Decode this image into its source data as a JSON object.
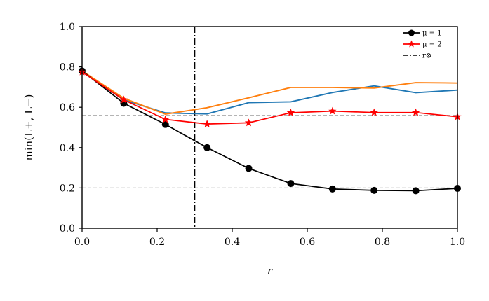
{
  "chart_data": {
    "type": "line",
    "xlabel": "r",
    "ylabel": "min(L+, L−)",
    "xlim": [
      0.0,
      1.0
    ],
    "ylim": [
      0.0,
      1.0
    ],
    "xticks": [
      "0.0",
      "0.2",
      "0.4",
      "0.6",
      "0.8",
      "1.0"
    ],
    "yticks": [
      "0.0",
      "0.2",
      "0.4",
      "0.6",
      "0.8",
      "1.0"
    ],
    "grid": false,
    "legend_position": "top-right",
    "series": [
      {
        "name": "μ = 1",
        "color": "#000000",
        "marker": "circle",
        "x": [
          0.0,
          0.111,
          0.222,
          0.333,
          0.444,
          0.556,
          0.667,
          0.778,
          0.889,
          1.0
        ],
        "y": [
          0.78,
          0.62,
          0.515,
          0.4,
          0.297,
          0.222,
          0.195,
          0.188,
          0.186,
          0.198
        ]
      },
      {
        "name": "μ = 2",
        "color": "#ff0000",
        "marker": "star",
        "x": [
          0.0,
          0.111,
          0.222,
          0.333,
          0.444,
          0.556,
          0.667,
          0.778,
          0.889,
          1.0
        ],
        "y": [
          0.775,
          0.637,
          0.54,
          0.517,
          0.523,
          0.573,
          0.581,
          0.574,
          0.574,
          0.553
        ]
      },
      {
        "color": "#1f77b4",
        "marker": "none",
        "x": [
          0.0,
          0.111,
          0.222,
          0.333,
          0.444,
          0.556,
          0.667,
          0.778,
          0.889,
          1.0
        ],
        "y": [
          0.775,
          0.637,
          0.572,
          0.567,
          0.623,
          0.627,
          0.673,
          0.706,
          0.672,
          0.685
        ]
      },
      {
        "color": "#ff7f0e",
        "marker": "none",
        "x": [
          0.0,
          0.111,
          0.222,
          0.333,
          0.444,
          0.556,
          0.667,
          0.778,
          0.889,
          1.0
        ],
        "y": [
          0.78,
          0.645,
          0.566,
          0.598,
          0.647,
          0.698,
          0.698,
          0.695,
          0.722,
          0.72
        ]
      }
    ],
    "vertical_lines": [
      {
        "name": "r⊗",
        "x": 0.3,
        "color": "#000000",
        "style": "dashdot"
      }
    ],
    "horizontal_lines": [
      {
        "y": 0.56,
        "color": "#aaaaaa",
        "style": "dashed"
      },
      {
        "y": 0.2,
        "color": "#aaaaaa",
        "style": "dashed"
      }
    ],
    "legend": [
      {
        "label": "μ = 1",
        "kind": "line-circle",
        "color": "#000000"
      },
      {
        "label": "μ = 2",
        "kind": "line-star",
        "color": "#ff0000"
      },
      {
        "label": "r⊗",
        "kind": "dashdot",
        "color": "#000000"
      }
    ]
  }
}
